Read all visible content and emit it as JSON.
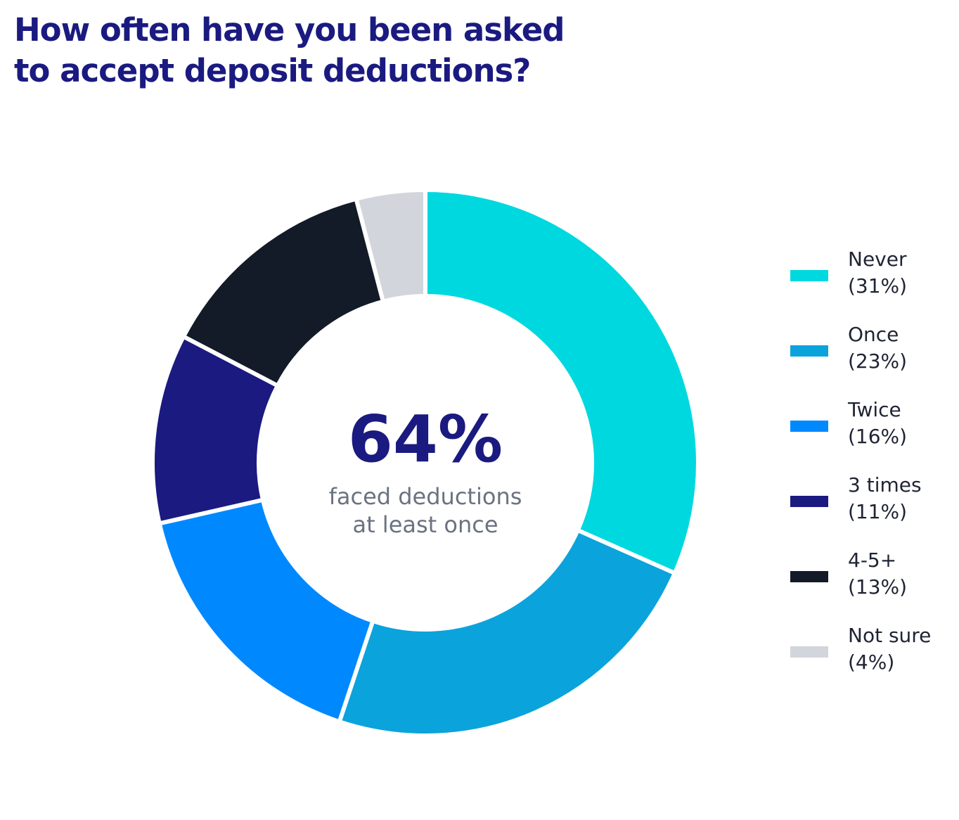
{
  "title": {
    "line1": "How often have you been asked",
    "line2": "to accept deposit deductions?"
  },
  "center": {
    "value": "64%",
    "caption_line1": "faced deductions",
    "caption_line2": "at least once"
  },
  "chart_data": {
    "type": "pie",
    "variant": "donut",
    "title": "How often have you been asked to accept deposit deductions?",
    "categories": [
      "Never",
      "Once",
      "Twice",
      "3 times",
      "4-5+",
      "Not sure"
    ],
    "values": [
      31,
      23,
      16,
      11,
      13,
      4
    ],
    "value_labels": [
      "(31%)",
      "(23%)",
      "(16%)",
      "(11%)",
      "(13%)",
      "(4%)"
    ],
    "colors": [
      "#00d8e0",
      "#0ba3dc",
      "#0089ff",
      "#1b1a80",
      "#131a28",
      "#d2d5dc"
    ],
    "unit": "%",
    "legend_position": "right",
    "start_angle": "12 o'clock",
    "direction": "clockwise",
    "center_annotation": "64% faced deductions at least once"
  }
}
